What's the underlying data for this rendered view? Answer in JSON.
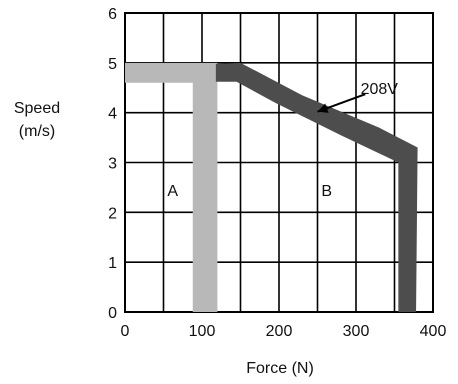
{
  "chart_data": {
    "type": "area",
    "title": "",
    "xlabel": "Force (N)",
    "ylabel_lines": [
      "Speed",
      "(m/s)"
    ],
    "xlim": [
      0,
      400
    ],
    "ylim": [
      0,
      6
    ],
    "x_ticks": [
      0,
      100,
      200,
      300,
      400
    ],
    "y_ticks": [
      0,
      1,
      2,
      3,
      4,
      5,
      6
    ],
    "grid": true,
    "series": [
      {
        "color": "#b8b8b8",
        "band": [
          [
            0,
            4.6
          ],
          [
            0,
            5.0
          ],
          [
            120,
            5.0
          ],
          [
            120,
            0
          ],
          [
            88,
            0
          ],
          [
            88,
            4.6
          ]
        ],
        "spine_x": [
          98,
          100,
          110
        ]
      },
      {
        "name": "208V",
        "color": "#4d4d4d",
        "band": [
          [
            118,
            4.62
          ],
          [
            118,
            4.98
          ],
          [
            150,
            5.0
          ],
          [
            230,
            4.35
          ],
          [
            330,
            3.7
          ],
          [
            380,
            3.3
          ],
          [
            378,
            0
          ],
          [
            355,
            0
          ],
          [
            355,
            3.0
          ],
          [
            280,
            3.55
          ],
          [
            195,
            4.2
          ],
          [
            145,
            4.62
          ]
        ]
      }
    ],
    "annotations": [
      {
        "text": "A",
        "x": 62,
        "y": 2.45
      },
      {
        "text": "B",
        "x": 262,
        "y": 2.45
      }
    ],
    "callout": {
      "text": "208V",
      "text_at": [
        306,
        4.5
      ],
      "arrow_from": [
        312,
        4.37
      ],
      "arrow_to": [
        250,
        4.02
      ]
    }
  }
}
